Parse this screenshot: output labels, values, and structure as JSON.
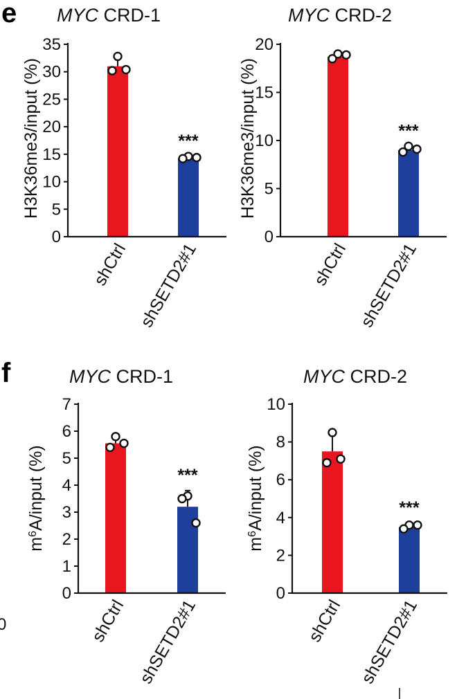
{
  "panels": [
    {
      "letter": "e",
      "chart_ids": [
        0,
        1
      ]
    },
    {
      "letter": "f",
      "chart_ids": [
        2,
        3
      ]
    }
  ],
  "colors": {
    "shCtrl": "#e8161e",
    "shSETD2#1": "#1f3f9c"
  },
  "stray_mark": "0",
  "chart_data": [
    {
      "type": "bar",
      "title_gene": "MYC",
      "title_rest": " CRD-1",
      "ylabel": "H3K36me3/input (%)",
      "ylim": [
        0,
        35
      ],
      "yticks": [
        0,
        5,
        10,
        15,
        20,
        25,
        30,
        35
      ],
      "categories": [
        "shCtrl",
        "shSETD2#1"
      ],
      "values": [
        31,
        14.3
      ],
      "error": [
        1.2,
        0.3
      ],
      "points": [
        [
          32.8,
          30.2,
          30.4
        ],
        [
          14.6,
          14.2,
          14.4
        ]
      ],
      "significance": [
        "",
        "***"
      ]
    },
    {
      "type": "bar",
      "title_gene": "MYC",
      "title_rest": " CRD-2",
      "ylabel": "H3K36me3/input (%)",
      "ylim": [
        0,
        20
      ],
      "yticks": [
        0,
        5,
        10,
        15,
        20
      ],
      "categories": [
        "shCtrl",
        "shSETD2#1"
      ],
      "values": [
        18.7,
        9
      ],
      "error": [
        0.3,
        0.4
      ],
      "points": [
        [
          19.0,
          18.5,
          18.9
        ],
        [
          9.4,
          8.8,
          9.1
        ]
      ],
      "significance": [
        "",
        "***"
      ]
    },
    {
      "type": "bar",
      "title_gene": "MYC",
      "title_rest": " CRD-1",
      "ylabel_sup": "6",
      "ylabel_pre": "m",
      "ylabel_post": "A/input (%)",
      "ylim": [
        0,
        7
      ],
      "yticks": [
        0,
        1,
        2,
        3,
        4,
        5,
        6,
        7
      ],
      "categories": [
        "shCtrl",
        "shSETD2#1"
      ],
      "values": [
        5.55,
        3.2
      ],
      "error": [
        0.25,
        0.6
      ],
      "points": [
        [
          5.8,
          5.4,
          5.55
        ],
        [
          3.6,
          3.5,
          2.6
        ]
      ],
      "significance": [
        "",
        "***"
      ]
    },
    {
      "type": "bar",
      "title_gene": "MYC",
      "title_rest": " CRD-2",
      "ylabel_sup": "6",
      "ylabel_pre": "m",
      "ylabel_post": "A/input (%)",
      "ylim": [
        0,
        10
      ],
      "yticks": [
        0,
        2,
        4,
        6,
        8,
        10
      ],
      "categories": [
        "shCtrl",
        "shSETD2#1"
      ],
      "values": [
        7.5,
        3.5
      ],
      "error": [
        0.9,
        0.2
      ],
      "points": [
        [
          8.5,
          6.9,
          7.1
        ],
        [
          3.6,
          3.4,
          3.6
        ]
      ],
      "significance": [
        "",
        "***"
      ]
    }
  ]
}
